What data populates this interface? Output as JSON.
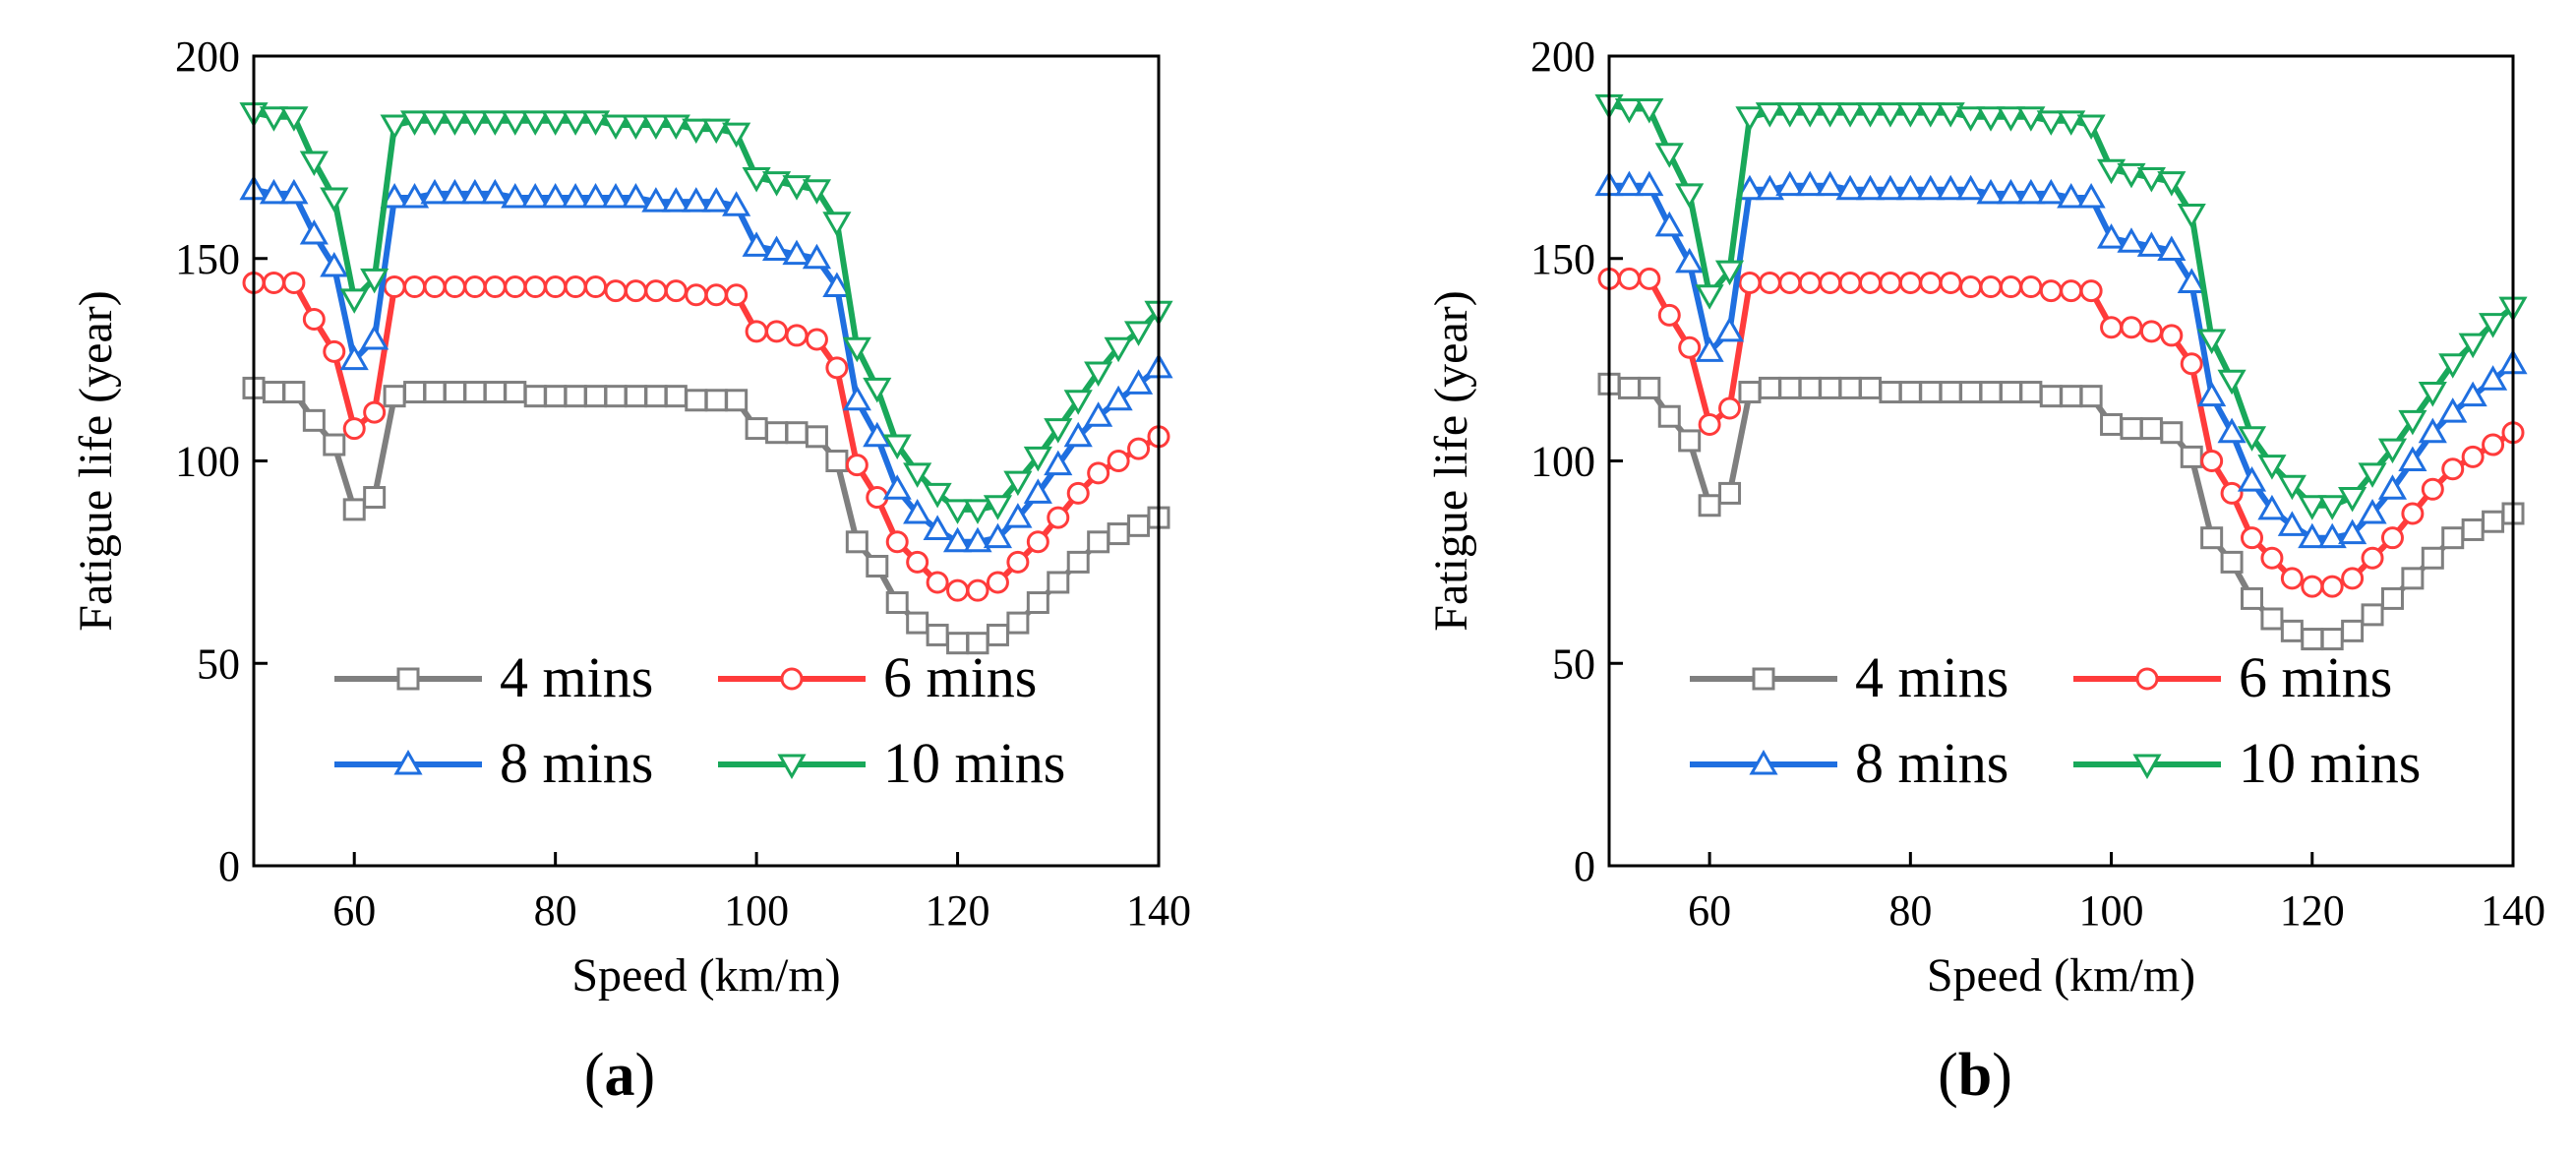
{
  "chart_data": [
    {
      "type": "line",
      "panel_label": "a",
      "xlabel": "Speed (km/m)",
      "ylabel": "Fatigue life (year)",
      "xlim": [
        50,
        140
      ],
      "ylim": [
        0,
        200
      ],
      "xticks": [
        60,
        80,
        100,
        120,
        140
      ],
      "yticks": [
        0,
        50,
        100,
        150,
        200
      ],
      "legend_position": "bottom",
      "x": [
        50,
        52,
        54,
        56,
        58,
        60,
        62,
        64,
        66,
        68,
        70,
        72,
        74,
        76,
        78,
        80,
        82,
        84,
        86,
        88,
        90,
        92,
        94,
        96,
        98,
        100,
        102,
        104,
        106,
        108,
        110,
        112,
        114,
        116,
        118,
        120,
        122,
        124,
        126,
        128,
        130,
        132,
        134,
        136,
        138,
        140
      ],
      "series": [
        {
          "name": "4 mins",
          "color": "#7f7f7f",
          "marker": "square",
          "values": [
            118,
            117,
            117,
            110,
            104,
            88,
            91,
            116,
            117,
            117,
            117,
            117,
            117,
            117,
            116,
            116,
            116,
            116,
            116,
            116,
            116,
            116,
            115,
            115,
            115,
            108,
            107,
            107,
            106,
            100,
            80,
            74,
            65,
            60,
            57,
            55,
            55,
            57,
            60,
            65,
            70,
            75,
            80,
            82,
            84,
            86
          ]
        },
        {
          "name": "6 mins",
          "color": "#ff3b3b",
          "marker": "circle",
          "values": [
            144,
            144,
            144,
            135,
            127,
            108,
            112,
            143,
            143,
            143,
            143,
            143,
            143,
            143,
            143,
            143,
            143,
            143,
            142,
            142,
            142,
            142,
            141,
            141,
            141,
            132,
            132,
            131,
            130,
            123,
            99,
            91,
            80,
            75,
            70,
            68,
            68,
            70,
            75,
            80,
            86,
            92,
            97,
            100,
            103,
            106
          ]
        },
        {
          "name": "8 mins",
          "color": "#1f6fe0",
          "marker": "triangle-up",
          "values": [
            167,
            166,
            166,
            156,
            148,
            125,
            130,
            165,
            165,
            166,
            166,
            166,
            166,
            165,
            165,
            165,
            165,
            165,
            165,
            165,
            164,
            164,
            164,
            164,
            163,
            153,
            152,
            151,
            150,
            143,
            115,
            106,
            93,
            87,
            83,
            80,
            80,
            81,
            86,
            92,
            99,
            106,
            111,
            115,
            119,
            123
          ]
        },
        {
          "name": "10 mins",
          "color": "#19a85a",
          "marker": "triangle-down",
          "values": [
            186,
            185,
            185,
            174,
            165,
            140,
            145,
            183,
            184,
            184,
            184,
            184,
            184,
            184,
            184,
            184,
            184,
            184,
            183,
            183,
            183,
            183,
            182,
            182,
            181,
            170,
            169,
            168,
            167,
            159,
            128,
            118,
            104,
            97,
            92,
            88,
            88,
            89,
            95,
            101,
            108,
            115,
            122,
            128,
            132,
            137
          ]
        }
      ]
    },
    {
      "type": "line",
      "panel_label": "b",
      "xlabel": "Speed (km/m)",
      "ylabel": "Fatigue life (year)",
      "xlim": [
        50,
        140
      ],
      "ylim": [
        0,
        200
      ],
      "xticks": [
        60,
        80,
        100,
        120,
        140
      ],
      "yticks": [
        0,
        50,
        100,
        150,
        200
      ],
      "legend_position": "bottom",
      "x": [
        50,
        52,
        54,
        56,
        58,
        60,
        62,
        64,
        66,
        68,
        70,
        72,
        74,
        76,
        78,
        80,
        82,
        84,
        86,
        88,
        90,
        92,
        94,
        96,
        98,
        100,
        102,
        104,
        106,
        108,
        110,
        112,
        114,
        116,
        118,
        120,
        122,
        124,
        126,
        128,
        130,
        132,
        134,
        136,
        138,
        140
      ],
      "series": [
        {
          "name": "4 mins",
          "color": "#7f7f7f",
          "marker": "square",
          "values": [
            119,
            118,
            118,
            111,
            105,
            89,
            92,
            117,
            118,
            118,
            118,
            118,
            118,
            118,
            117,
            117,
            117,
            117,
            117,
            117,
            117,
            117,
            116,
            116,
            116,
            109,
            108,
            108,
            107,
            101,
            81,
            75,
            66,
            61,
            58,
            56,
            56,
            58,
            62,
            66,
            71,
            76,
            81,
            83,
            85,
            87
          ]
        },
        {
          "name": "6 mins",
          "color": "#ff3b3b",
          "marker": "circle",
          "values": [
            145,
            145,
            145,
            136,
            128,
            109,
            113,
            144,
            144,
            144,
            144,
            144,
            144,
            144,
            144,
            144,
            144,
            144,
            143,
            143,
            143,
            143,
            142,
            142,
            142,
            133,
            133,
            132,
            131,
            124,
            100,
            92,
            81,
            76,
            71,
            69,
            69,
            71,
            76,
            81,
            87,
            93,
            98,
            101,
            104,
            107
          ]
        },
        {
          "name": "8 mins",
          "color": "#1f6fe0",
          "marker": "triangle-up",
          "values": [
            168,
            168,
            168,
            158,
            149,
            127,
            132,
            167,
            167,
            168,
            168,
            168,
            167,
            167,
            167,
            167,
            167,
            167,
            167,
            166,
            166,
            166,
            166,
            165,
            165,
            155,
            154,
            153,
            152,
            144,
            116,
            107,
            95,
            88,
            84,
            81,
            81,
            82,
            87,
            93,
            100,
            107,
            112,
            116,
            120,
            124
          ]
        },
        {
          "name": "10 mins",
          "color": "#19a85a",
          "marker": "triangle-down",
          "values": [
            188,
            187,
            187,
            176,
            166,
            141,
            147,
            185,
            186,
            186,
            186,
            186,
            186,
            186,
            186,
            186,
            186,
            186,
            185,
            185,
            185,
            185,
            184,
            184,
            183,
            172,
            171,
            170,
            169,
            161,
            130,
            120,
            106,
            99,
            94,
            89,
            89,
            91,
            97,
            103,
            110,
            117,
            124,
            129,
            134,
            138
          ]
        }
      ]
    }
  ]
}
